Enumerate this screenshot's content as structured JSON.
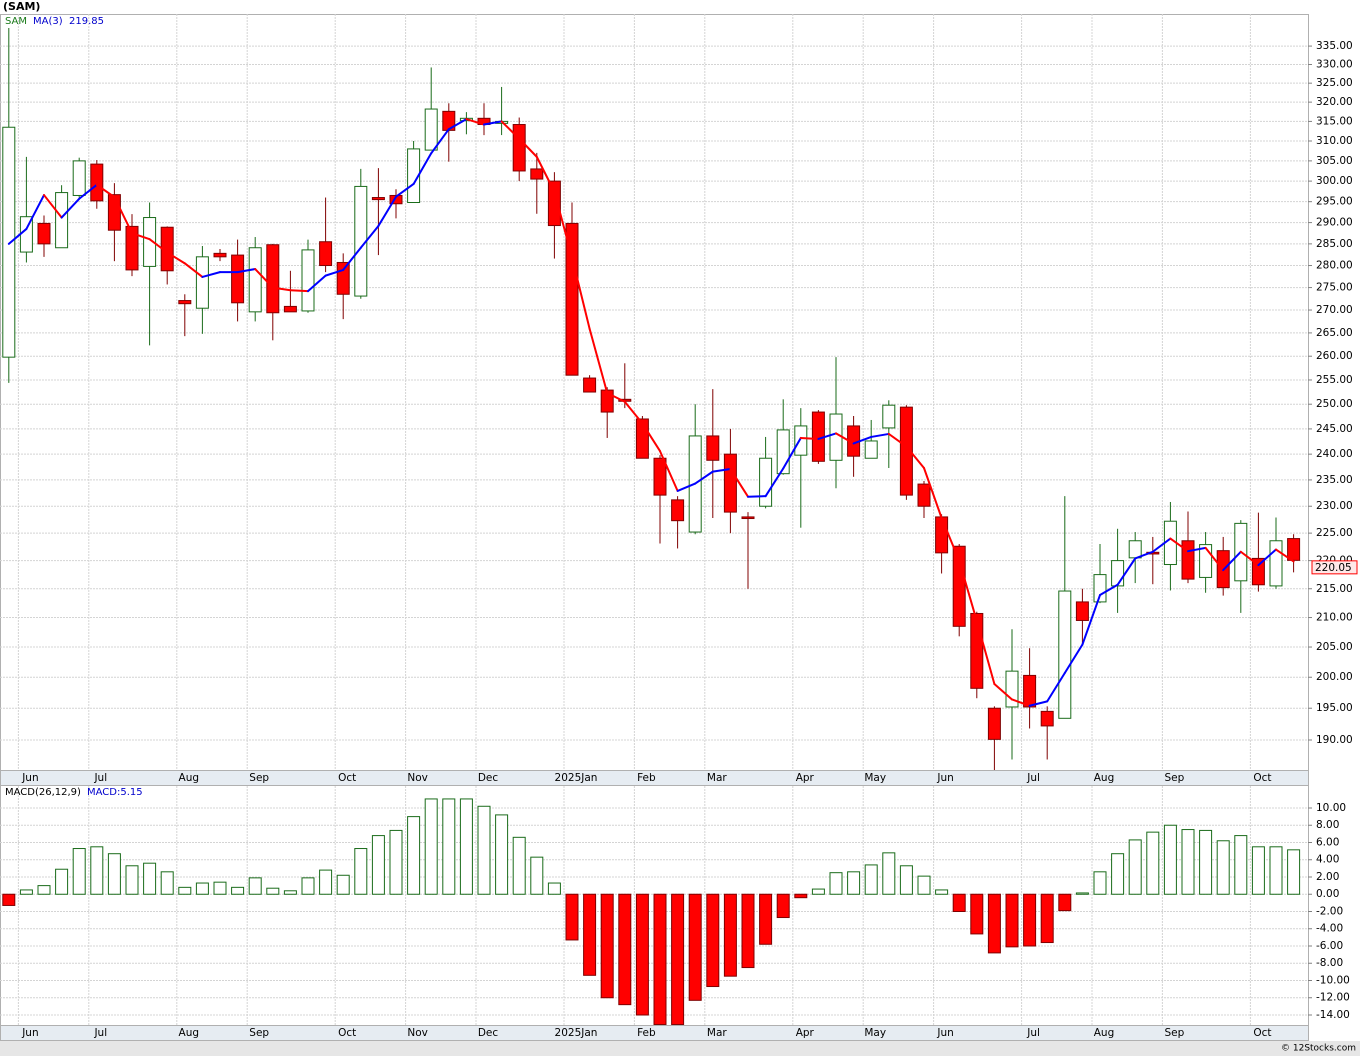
{
  "chart_data": [
    {
      "type": "candlestick",
      "title": "(SAM)",
      "symbol": "SAM",
      "ma_name": "MA(3)",
      "log_scale": true,
      "grid": true,
      "up_color": "#1a6b1a",
      "down_color": "#ff0000",
      "ma_up_color": "#0000ff",
      "ma_down_color": "#ff0000",
      "categories": [
        null,
        "Jun",
        null,
        null,
        null,
        "Jul",
        null,
        null,
        null,
        null,
        "Aug",
        null,
        null,
        null,
        "Sep",
        null,
        null,
        null,
        null,
        "Oct",
        null,
        null,
        null,
        "Nov",
        null,
        null,
        null,
        "Dec",
        null,
        null,
        null,
        null,
        "2025Jan",
        null,
        null,
        null,
        "Feb",
        null,
        null,
        null,
        "Mar",
        null,
        null,
        null,
        null,
        "Apr",
        null,
        null,
        null,
        "May",
        null,
        null,
        null,
        "Jun",
        null,
        null,
        null,
        null,
        "Jul",
        null,
        null,
        null,
        "Aug",
        null,
        null,
        null,
        "Sep",
        null,
        null,
        null,
        null,
        "Oct",
        null,
        null
      ],
      "open": [
        259.8,
        283.1,
        289.8,
        284.1,
        296.5,
        304.2,
        296.7,
        289.1,
        279.8,
        288.9,
        272.1,
        270.4,
        282.8,
        282.4,
        269.6,
        284.8,
        270.8,
        269.8,
        285.5,
        280.7,
        273.1,
        296,
        296.5,
        294.8,
        307.7,
        317.6,
        315.2,
        315.8,
        314.5,
        314.2,
        303,
        300,
        289.8,
        255.4,
        252.9,
        251,
        247,
        239.2,
        231.2,
        225.2,
        243.6,
        240,
        228,
        230,
        236.2,
        239.8,
        248.4,
        238.8,
        245.6,
        239.2,
        245.2,
        249.4,
        234.2,
        228,
        222.6,
        210.7,
        195,
        195.2,
        200.3,
        194.5,
        193.4,
        212.7,
        212.7,
        215.5,
        220.5,
        221.5,
        219.3,
        223.6,
        217,
        221.8,
        216.4,
        220.4,
        215.5,
        224
      ],
      "high": [
        340,
        306,
        291.7,
        299,
        305.8,
        305.2,
        299.5,
        292,
        294.8,
        289.1,
        273.5,
        284.5,
        283.8,
        286,
        286.6,
        285,
        278.8,
        286,
        296,
        282.8,
        303,
        303.2,
        298,
        310,
        329.2,
        319.7,
        317.4,
        319.7,
        324,
        316,
        307,
        302.2,
        294.8,
        256,
        253.5,
        258.5,
        247.6,
        239.8,
        231.9,
        250,
        253.1,
        245,
        228.9,
        243.4,
        251,
        249.2,
        248.8,
        259.8,
        247.6,
        246.8,
        250.8,
        249.8,
        234.8,
        228.5,
        223,
        211,
        195.3,
        208,
        204.8,
        195.3,
        231.9,
        215,
        223,
        225.8,
        225.2,
        224.3,
        230.8,
        229,
        225.2,
        224.3,
        227.4,
        228.8,
        227.9,
        224.8
      ],
      "low": [
        254.4,
        280.7,
        282,
        284.1,
        296,
        293.3,
        281,
        277.6,
        262.3,
        275.7,
        264.3,
        264.8,
        281,
        267.5,
        267.5,
        263.4,
        269.6,
        269.4,
        278.5,
        268,
        272.5,
        282.4,
        291,
        294.8,
        307.7,
        304.8,
        311.7,
        311.5,
        311.5,
        300,
        292.1,
        281.6,
        256,
        252.5,
        243.2,
        249.2,
        239.2,
        223.1,
        222.2,
        224.8,
        227.8,
        225,
        215,
        229.6,
        236,
        226,
        238.1,
        233.4,
        235.6,
        239.2,
        237.3,
        231.2,
        227.8,
        217.7,
        206.8,
        196.6,
        185.4,
        187,
        191.8,
        187,
        193.4,
        205.3,
        212.5,
        210.8,
        216,
        215.8,
        214.7,
        216,
        214.3,
        213.8,
        210.8,
        214.5,
        215,
        217.9
      ],
      "close": [
        313.5,
        291.4,
        285,
        297.2,
        305,
        295.2,
        288.2,
        279,
        291.2,
        278.8,
        271.4,
        282,
        282,
        271.6,
        284.1,
        269.4,
        269.6,
        283.6,
        280,
        273.5,
        298.7,
        295.5,
        294.5,
        308,
        318.2,
        312.7,
        315.8,
        314.2,
        315,
        302.5,
        300.5,
        289.3,
        256,
        252.5,
        248.4,
        250.6,
        239.2,
        232.1,
        227.3,
        243.6,
        238.8,
        228.9,
        227.7,
        239.2,
        244.8,
        245.6,
        238.6,
        248,
        239.6,
        242.6,
        249.8,
        232.1,
        230,
        221.4,
        208.5,
        198.2,
        190.1,
        201,
        195.2,
        192.2,
        214.6,
        209.5,
        217.5,
        220,
        223.6,
        221.2,
        227.2,
        216.7,
        222.9,
        215.2,
        226.8,
        215.7,
        223.6,
        220.05
      ],
      "ma": [
        285,
        288.5,
        296.6,
        291.2,
        295.7,
        299.1,
        296.1,
        287.5,
        286.1,
        283,
        280.5,
        277.4,
        278.5,
        278.5,
        279.2,
        275,
        274.4,
        274.2,
        277.7,
        279,
        284.1,
        289.2,
        296.2,
        299.3,
        306.9,
        313,
        315.6,
        314.2,
        315,
        310.6,
        306,
        297.4,
        281.9,
        265.9,
        252.3,
        250.5,
        246.1,
        240.6,
        232.9,
        234.3,
        236.6,
        237.1,
        231.8,
        231.9,
        237.2,
        243.2,
        243,
        244.1,
        242.1,
        243.4,
        244,
        241.5,
        237.3,
        227.8,
        220,
        209.4,
        198.9,
        196.4,
        195.4,
        196.1,
        200.7,
        205.4,
        213.9,
        215.7,
        220.4,
        221.6,
        224,
        221.7,
        222.3,
        218.3,
        221.6,
        219.2,
        222,
        219.85
      ],
      "ylim": [
        185.4,
        343.9
      ],
      "yticks": [
        {
          "value": 190,
          "label": "190.00"
        },
        {
          "value": 195,
          "label": "195.00"
        },
        {
          "value": 200,
          "label": "200.00"
        },
        {
          "value": 205,
          "label": "205.00"
        },
        {
          "value": 210,
          "label": "210.00"
        },
        {
          "value": 215,
          "label": "215.00"
        },
        {
          "value": 220,
          "label": "220.00"
        },
        {
          "value": 225,
          "label": "225.00"
        },
        {
          "value": 230,
          "label": "230.00"
        },
        {
          "value": 235,
          "label": "235.00"
        },
        {
          "value": 240,
          "label": "240.00"
        },
        {
          "value": 245,
          "label": "245.00"
        },
        {
          "value": 250,
          "label": "250.00"
        },
        {
          "value": 255,
          "label": "255.00"
        },
        {
          "value": 260,
          "label": "260.00"
        },
        {
          "value": 265,
          "label": "265.00"
        },
        {
          "value": 270,
          "label": "270.00"
        },
        {
          "value": 275,
          "label": "275.00"
        },
        {
          "value": 280,
          "label": "280.00"
        },
        {
          "value": 285,
          "label": "285.00"
        },
        {
          "value": 290,
          "label": "290.00"
        },
        {
          "value": 295,
          "label": "295.00"
        },
        {
          "value": 300,
          "label": "300.00"
        },
        {
          "value": 305,
          "label": "305.00"
        },
        {
          "value": 310,
          "label": "310.00"
        },
        {
          "value": 315,
          "label": "315.00"
        },
        {
          "value": 320,
          "label": "320.00"
        },
        {
          "value": 325,
          "label": "325.00"
        },
        {
          "value": 330,
          "label": "330.00"
        },
        {
          "value": 335,
          "label": "335.00"
        }
      ]
    },
    {
      "type": "bar",
      "title": "MACD(26,12,9)",
      "value_name": "MACD:",
      "grid": true,
      "up_color": "#1a6b1a",
      "down_color": "#ff0000",
      "values": [
        -1.3,
        0.5,
        1.0,
        2.9,
        5.3,
        5.5,
        4.7,
        3.3,
        3.6,
        2.6,
        0.8,
        1.3,
        1.4,
        0.8,
        1.9,
        0.7,
        0.4,
        1.9,
        2.8,
        2.2,
        5.3,
        6.8,
        7.4,
        9.0,
        11.05,
        11.05,
        11.05,
        10.2,
        9.2,
        6.6,
        4.3,
        1.3,
        -5.3,
        -9.4,
        -12.0,
        -12.8,
        -14.0,
        -15.1,
        -15.1,
        -12.3,
        -10.7,
        -9.5,
        -8.5,
        -5.8,
        -2.7,
        -0.4,
        0.6,
        2.5,
        2.6,
        3.4,
        4.8,
        3.3,
        2.1,
        0.5,
        -2.0,
        -4.6,
        -6.8,
        -6.1,
        -6.0,
        -5.6,
        -1.9,
        0.15,
        2.6,
        4.7,
        6.3,
        7.2,
        8.0,
        7.5,
        7.4,
        6.2,
        6.8,
        5.5,
        5.5,
        5.15
      ],
      "ylim": [
        -15.16,
        12.55
      ],
      "yticks": [
        {
          "value": -14,
          "label": "-14.00"
        },
        {
          "value": -12,
          "label": "-12.00"
        },
        {
          "value": -10,
          "label": "-10.00"
        },
        {
          "value": -8,
          "label": "-8.00"
        },
        {
          "value": -6,
          "label": "-6.00"
        },
        {
          "value": -4,
          "label": "-4.00"
        },
        {
          "value": -2,
          "label": "-2.00"
        },
        {
          "value": 0,
          "label": "0.00"
        },
        {
          "value": 2,
          "label": "2.00"
        },
        {
          "value": 4,
          "label": "4.00"
        },
        {
          "value": 6,
          "label": "6.00"
        },
        {
          "value": 8,
          "label": "8.00"
        },
        {
          "value": 10,
          "label": "10.00"
        }
      ]
    }
  ],
  "footer": "© 12Stocks.com"
}
